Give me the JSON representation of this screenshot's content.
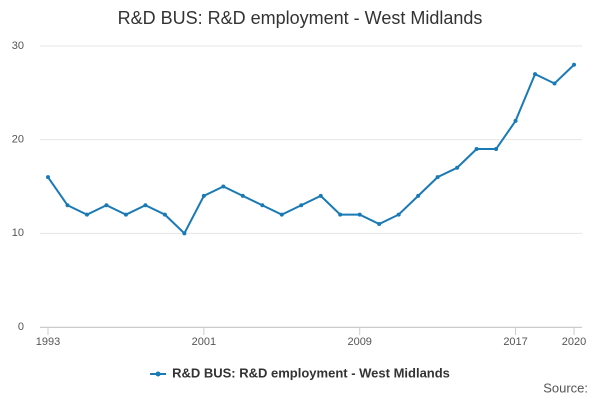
{
  "chart_data": {
    "type": "line",
    "title": "R&D BUS: R&D employment - West Midlands",
    "x": [
      1993,
      1994,
      1995,
      1996,
      1997,
      1998,
      1999,
      2000,
      2001,
      2002,
      2003,
      2004,
      2005,
      2006,
      2007,
      2008,
      2009,
      2010,
      2011,
      2012,
      2013,
      2014,
      2015,
      2016,
      2017,
      2018,
      2019,
      2020
    ],
    "series": [
      {
        "name": "R&D BUS: R&D employment - West Midlands",
        "color": "#1a7ab5",
        "values": [
          16,
          13,
          12,
          13,
          12,
          13,
          12,
          10,
          14,
          15,
          14,
          13,
          12,
          13,
          14,
          12,
          12,
          11,
          12,
          14,
          16,
          17,
          19,
          19,
          22,
          27,
          26,
          28
        ]
      }
    ],
    "xlim": [
      1993,
      2020
    ],
    "xticks": [
      1993,
      2001,
      2009,
      2017,
      2020
    ],
    "ylim": [
      0,
      30
    ],
    "yticks": [
      0,
      10,
      20,
      30
    ],
    "grid": true,
    "legend": "bottom",
    "source": "Source:"
  }
}
